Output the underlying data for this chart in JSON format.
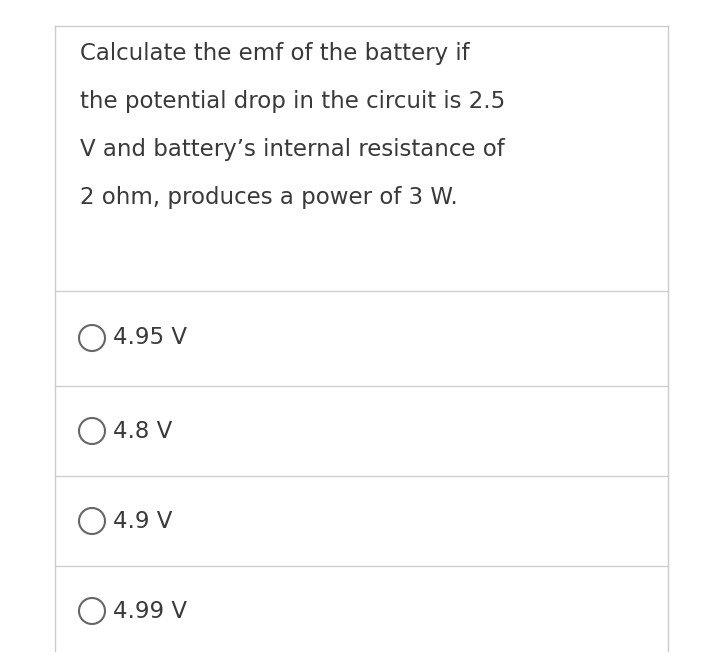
{
  "question_lines": [
    "Calculate the emf of the battery if",
    "the potential drop in the circuit is 2.5",
    "V and battery’s internal resistance of",
    "2 ohm, produces a power of 3 W."
  ],
  "options": [
    "4.95 V",
    "4.8 V",
    "4.9 V",
    "4.99 V"
  ],
  "bg_color": "#ffffff",
  "card_bg": "#ffffff",
  "card_border": "#cccccc",
  "text_color": "#3a3a3a",
  "option_text_color": "#3a3a3a",
  "line_color": "#cccccc",
  "question_fontsize": 16.5,
  "option_fontsize": 16.5,
  "circle_color": "#666666",
  "outer_bg": "#ffffff"
}
